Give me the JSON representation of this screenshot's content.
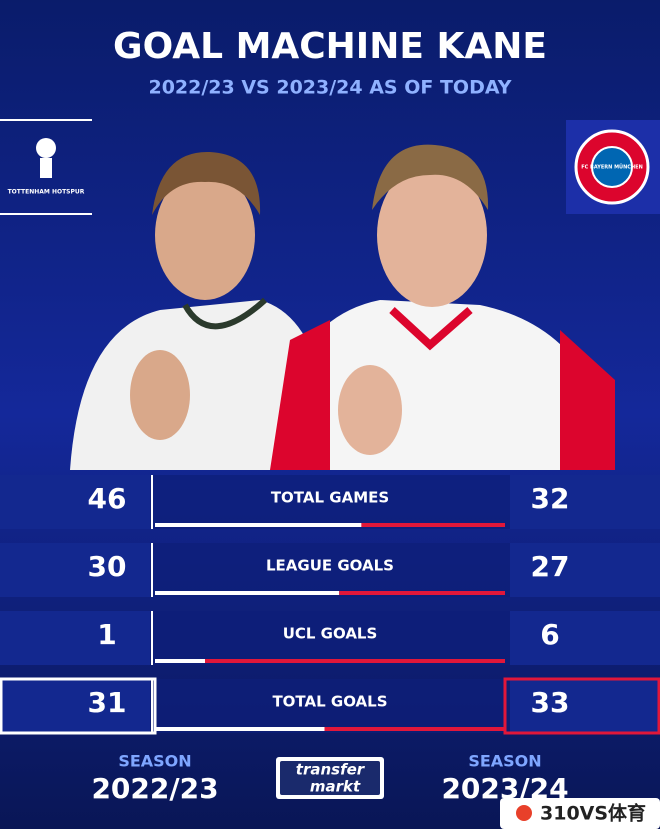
{
  "header": {
    "title": "GOAL MACHINE KANE",
    "subtitle": "2022/23 VS 2023/24 AS OF TODAY"
  },
  "logos": {
    "left": "TOTTENHAM HOTSPUR",
    "right": "FC BAYERN MÜNCHEN"
  },
  "rows": [
    {
      "label": "TOTAL GAMES",
      "left": 46,
      "right": 32
    },
    {
      "label": "LEAGUE GOALS",
      "left": 30,
      "right": 27
    },
    {
      "label": "UCL GOALS",
      "left": 1,
      "right": 6
    },
    {
      "label": "TOTAL GOALS",
      "left": 31,
      "right": 33
    }
  ],
  "footer": {
    "left_caption": "SEASON",
    "left_season": "2022/23",
    "right_caption": "SEASON",
    "right_season": "2023/24",
    "brand_top": "transfer",
    "brand_bottom": "markt"
  },
  "watermark": "310VS体育"
}
